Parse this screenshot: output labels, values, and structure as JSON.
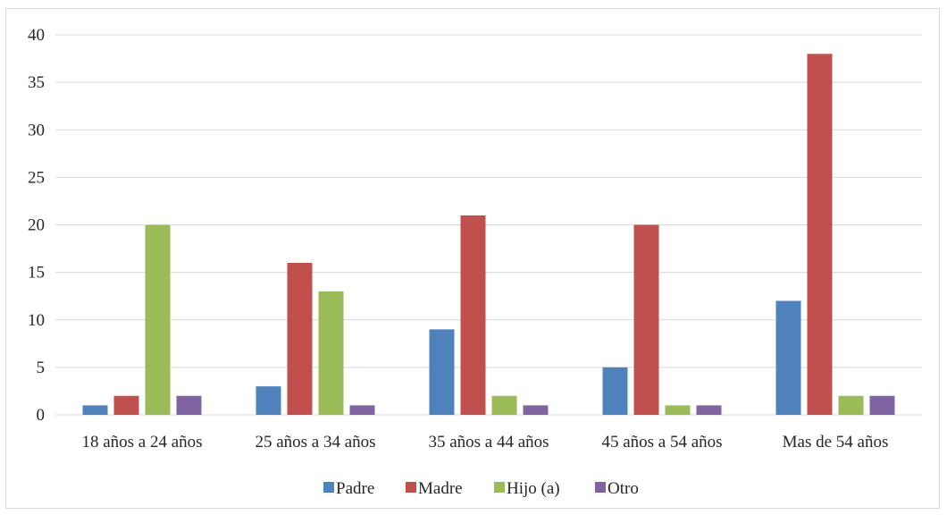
{
  "chart_data": {
    "type": "bar",
    "categories": [
      "18 años a 24 años",
      "25 años a 34 años",
      "35 años a 44 años",
      "45 años a 54 años",
      "Mas de 54 años"
    ],
    "series": [
      {
        "name": "Padre",
        "values": [
          1,
          3,
          9,
          5,
          12
        ]
      },
      {
        "name": "Madre",
        "values": [
          2,
          16,
          21,
          20,
          38
        ]
      },
      {
        "name": "Hijo (a)",
        "values": [
          20,
          13,
          2,
          1,
          2
        ]
      },
      {
        "name": "Otro",
        "values": [
          2,
          1,
          1,
          1,
          2
        ]
      }
    ],
    "title": "",
    "xlabel": "",
    "ylabel": "",
    "ylim": [
      0,
      40
    ],
    "yticks": [
      "0",
      "5",
      "10",
      "15",
      "20",
      "25",
      "30",
      "35",
      "40"
    ],
    "grid": true,
    "legend": "bottom",
    "colors": [
      "#4f81bd",
      "#c0504d",
      "#9bbb59",
      "#8064a2"
    ],
    "gridline_color": "#d9d9d9"
  }
}
